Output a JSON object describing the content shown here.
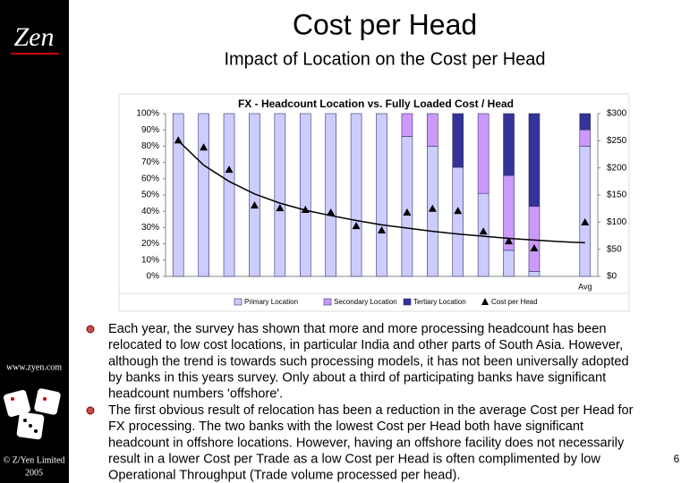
{
  "slide": {
    "title": "Cost per Head",
    "subtitle": "Impact of Location on the Cost per Head",
    "logo": "Zen",
    "website": "www.zyen.com",
    "copyright": [
      "© Z/Yen Limited",
      "2005"
    ],
    "page_number": "6",
    "bullets": [
      [
        "Each year, the survey has shown that more and more processing headcount has been",
        "relocated to low cost locations, in particular India and other parts of South Asia.  However,",
        "although the trend is towards such processing models, it has not been universally adopted",
        "by banks in this years survey.  Only about a third of participating banks have significant",
        "headcount numbers 'offshore'."
      ],
      [
        "The first obvious result of relocation has been a reduction in the average Cost per Head for",
        "FX processing.  The two banks with the lowest Cost per Head both have significant",
        "headcount in offshore locations.  However, having an offshore facility does not necessarily",
        "result in a lower Cost per Trade as a low Cost per Head is often complimented by low",
        "Operational Throughput (Trade volume processed per head)."
      ]
    ]
  },
  "chart_data": {
    "type": "bar",
    "stacked": true,
    "title": "FX - Headcount Location vs. Fully Loaded Cost / Head",
    "categories": [
      null,
      null,
      null,
      null,
      null,
      null,
      null,
      null,
      null,
      null,
      null,
      null,
      null,
      null,
      null,
      null,
      "Avg"
    ],
    "series": [
      {
        "name": "Primary Location",
        "color": "#ccccff",
        "values": [
          100,
          100,
          100,
          100,
          100,
          100,
          100,
          100,
          100,
          86,
          80,
          67,
          51,
          16,
          3,
          null,
          80
        ]
      },
      {
        "name": "Secondary Location",
        "color": "#cc99ff",
        "values": [
          0,
          0,
          0,
          0,
          0,
          0,
          0,
          0,
          0,
          14,
          20,
          0,
          49,
          46,
          40,
          null,
          10
        ]
      },
      {
        "name": "Tertiary Location",
        "color": "#333399",
        "values": [
          0,
          0,
          0,
          0,
          0,
          0,
          0,
          0,
          0,
          0,
          0,
          33,
          0,
          38,
          57,
          null,
          10
        ]
      },
      {
        "name": "Cost per Head",
        "type": "scatter",
        "axis": "y2",
        "color": "#000000",
        "values": [
          250,
          237,
          196,
          130,
          125,
          122,
          117,
          92,
          84,
          117,
          124,
          120,
          82,
          64,
          51,
          null,
          99
        ]
      },
      {
        "type": "line",
        "axis": "y2",
        "color": "#000000",
        "values": [
          250,
          205,
          175,
          152,
          135,
          122,
          112,
          103,
          95,
          89,
          83,
          78,
          74,
          70,
          67,
          64,
          62
        ]
      }
    ],
    "ylim": [
      0,
      100
    ],
    "yticks": [
      {
        "value": 0,
        "label": "0%"
      },
      {
        "value": 10,
        "label": "10%"
      },
      {
        "value": 20,
        "label": "20%"
      },
      {
        "value": 30,
        "label": "30%"
      },
      {
        "value": 40,
        "label": "40%"
      },
      {
        "value": 50,
        "label": "50%"
      },
      {
        "value": 60,
        "label": "60%"
      },
      {
        "value": 70,
        "label": "70%"
      },
      {
        "value": 80,
        "label": "80%"
      },
      {
        "value": 90,
        "label": "90%"
      },
      {
        "value": 100,
        "label": "100%"
      }
    ],
    "y2lim": [
      0,
      300
    ],
    "y2ticks": [
      {
        "value": 0,
        "label": "$0"
      },
      {
        "value": 50,
        "label": "$50"
      },
      {
        "value": 100,
        "label": "$100"
      },
      {
        "value": 150,
        "label": "$150"
      },
      {
        "value": 200,
        "label": "$200"
      },
      {
        "value": 250,
        "label": "$250"
      },
      {
        "value": 300,
        "label": "$300"
      }
    ],
    "legend": "bottom"
  }
}
